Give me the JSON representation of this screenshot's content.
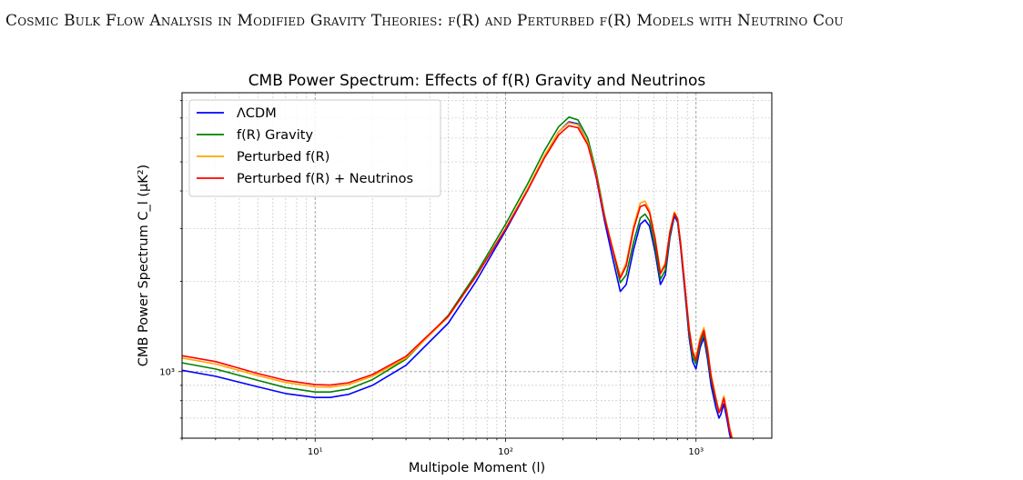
{
  "page": {
    "running_head": "Cosmic Bulk Flow Analysis in Modified Gravity Theories: f(R) and Perturbed f(R) Models with Neutrino Cou"
  },
  "chart_data": {
    "type": "line",
    "title": "CMB Power Spectrum: Effects of f(R) Gravity and Neutrinos",
    "xlabel": "Multipole Moment (l)",
    "ylabel": "CMB Power Spectrum C_l (μK²)",
    "xscale": "log",
    "yscale": "log",
    "xlim": [
      2,
      2500
    ],
    "ylim": [
      600,
      8500
    ],
    "x_ticks": [
      {
        "value": 10,
        "label": "10¹"
      },
      {
        "value": 100,
        "label": "10²"
      },
      {
        "value": 1000,
        "label": "10³"
      }
    ],
    "y_ticks": [
      {
        "value": 1000,
        "label": "10³"
      }
    ],
    "grid": true,
    "legend_position": "top-left",
    "series": [
      {
        "name": "ΛCDM",
        "color": "#0000ff",
        "x": [
          2,
          3,
          5,
          7,
          10,
          12,
          15,
          20,
          30,
          50,
          70,
          100,
          130,
          160,
          190,
          215,
          240,
          270,
          300,
          330,
          370,
          400,
          430,
          470,
          510,
          540,
          570,
          610,
          650,
          690,
          730,
          770,
          800,
          830,
          870,
          920,
          960,
          1000,
          1050,
          1100,
          1150,
          1200,
          1270,
          1320,
          1350,
          1400,
          1450,
          1500,
          1550,
          1600
        ],
        "y": [
          1010,
          965,
          890,
          845,
          820,
          820,
          840,
          900,
          1050,
          1450,
          2000,
          2950,
          4000,
          5200,
          6300,
          6800,
          6700,
          5800,
          4400,
          3200,
          2300,
          1850,
          1950,
          2550,
          3100,
          3200,
          3050,
          2500,
          1950,
          2100,
          2800,
          3300,
          3150,
          2600,
          1900,
          1300,
          1080,
          1020,
          1200,
          1300,
          1100,
          900,
          760,
          700,
          720,
          780,
          700,
          620,
          570,
          540
        ]
      },
      {
        "name": "f(R) Gravity",
        "color": "#008000",
        "x": [
          2,
          3,
          5,
          7,
          10,
          12,
          15,
          20,
          30,
          50,
          70,
          100,
          130,
          160,
          190,
          215,
          240,
          270,
          300,
          330,
          370,
          400,
          430,
          470,
          510,
          540,
          570,
          610,
          650,
          690,
          730,
          770,
          800,
          830,
          870,
          920,
          960,
          1000,
          1050,
          1100,
          1150,
          1200,
          1270,
          1320,
          1350,
          1400,
          1450,
          1500,
          1550,
          1600
        ],
        "y": [
          1070,
          1020,
          935,
          885,
          855,
          855,
          875,
          940,
          1100,
          1540,
          2120,
          3100,
          4200,
          5450,
          6550,
          7050,
          6900,
          6000,
          4600,
          3350,
          2450,
          1980,
          2100,
          2700,
          3250,
          3350,
          3180,
          2600,
          2030,
          2180,
          2850,
          3350,
          3200,
          2650,
          1950,
          1340,
          1120,
          1060,
          1240,
          1340,
          1140,
          940,
          800,
          730,
          750,
          820,
          740,
          650,
          600,
          560
        ]
      },
      {
        "name": "Perturbed f(R)",
        "color": "#ffa500",
        "x": [
          2,
          3,
          5,
          7,
          10,
          12,
          15,
          20,
          30,
          50,
          70,
          100,
          130,
          160,
          190,
          215,
          240,
          270,
          300,
          330,
          370,
          400,
          430,
          470,
          510,
          540,
          570,
          610,
          650,
          690,
          730,
          770,
          800,
          830,
          870,
          920,
          960,
          1000,
          1050,
          1100,
          1150,
          1200,
          1270,
          1320,
          1350,
          1400,
          1450,
          1500,
          1550,
          1600
        ],
        "y": [
          1110,
          1060,
          970,
          920,
          890,
          888,
          905,
          965,
          1110,
          1520,
          2080,
          3000,
          4050,
          5250,
          6300,
          6750,
          6650,
          5800,
          4500,
          3300,
          2500,
          2080,
          2300,
          3050,
          3650,
          3700,
          3450,
          2800,
          2150,
          2300,
          2950,
          3400,
          3250,
          2700,
          2000,
          1400,
          1180,
          1110,
          1300,
          1400,
          1200,
          980,
          820,
          740,
          760,
          830,
          740,
          650,
          600,
          560
        ]
      },
      {
        "name": "Perturbed f(R) + Neutrinos",
        "color": "#ff0000",
        "x": [
          2,
          3,
          5,
          7,
          10,
          12,
          15,
          20,
          30,
          50,
          70,
          100,
          130,
          160,
          190,
          215,
          240,
          270,
          300,
          330,
          370,
          400,
          430,
          470,
          510,
          540,
          570,
          610,
          650,
          690,
          730,
          770,
          800,
          830,
          870,
          920,
          960,
          1000,
          1050,
          1100,
          1150,
          1200,
          1270,
          1320,
          1350,
          1400,
          1450,
          1500,
          1550,
          1600
        ],
        "y": [
          1130,
          1080,
          985,
          935,
          905,
          902,
          918,
          978,
          1125,
          1530,
          2080,
          2990,
          4000,
          5150,
          6150,
          6600,
          6500,
          5700,
          4450,
          3280,
          2470,
          2050,
          2250,
          2980,
          3550,
          3600,
          3380,
          2760,
          2120,
          2270,
          2920,
          3370,
          3220,
          2680,
          1980,
          1380,
          1160,
          1090,
          1270,
          1370,
          1180,
          960,
          810,
          730,
          750,
          815,
          730,
          640,
          590,
          550
        ]
      }
    ]
  }
}
